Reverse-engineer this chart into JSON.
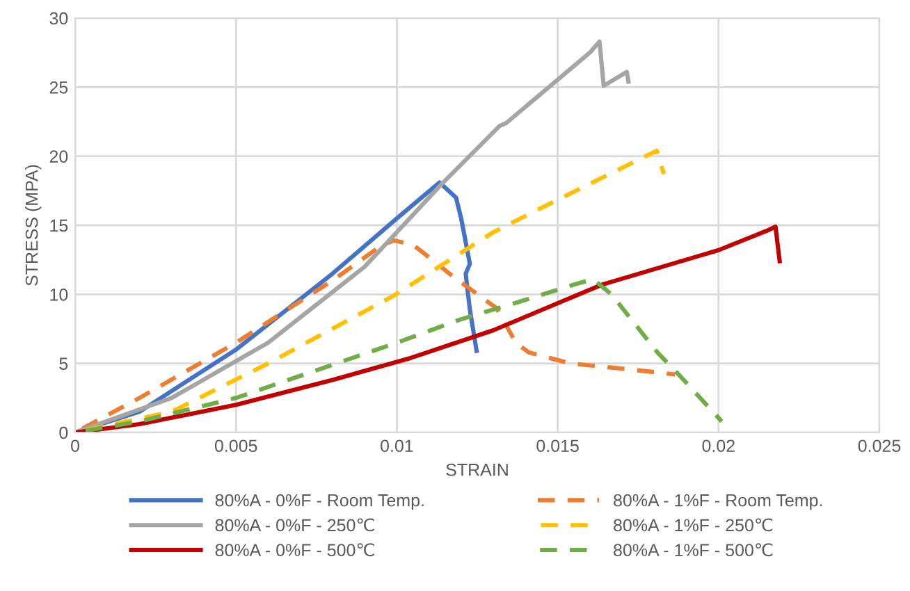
{
  "chart_data": {
    "type": "line",
    "xlabel": "STRAIN",
    "ylabel": "STRESS (MPA)",
    "xlim": [
      0,
      0.025
    ],
    "xticks": [
      0,
      0.005,
      0.01,
      0.015,
      0.02,
      0.025
    ],
    "ylim": [
      0,
      30
    ],
    "yticks": [
      0,
      5,
      10,
      15,
      20,
      25,
      30
    ],
    "grid": true,
    "legend": "bottom",
    "series": [
      {
        "name": "80%A - 0%F - Room Temp.",
        "color": "#4472c4",
        "line_style": "solid",
        "x": [
          0,
          0.002,
          0.005,
          0.008,
          0.01,
          0.01133,
          0.01184,
          0.012,
          0.01227,
          0.01214,
          0.01227,
          0.01248
        ],
        "values": [
          0,
          1.5,
          6,
          11.5,
          15.5,
          18.1,
          17.0,
          15.5,
          12.2,
          11.5,
          8.9,
          5.9
        ]
      },
      {
        "name": "80%A - 1%F - Room Temp.",
        "color": "#ed7d31",
        "line_style": "dashed",
        "x": [
          0,
          0.002,
          0.005,
          0.008,
          0.0095,
          0.0099,
          0.0105,
          0.0118,
          0.0131,
          0.0137,
          0.0141,
          0.0154,
          0.0175,
          0.01865
        ],
        "values": [
          0,
          2.5,
          6.5,
          11,
          13.5,
          13.9,
          13.6,
          11.2,
          9.0,
          6.5,
          5.8,
          5.0,
          4.5,
          4.2
        ]
      },
      {
        "name": "80%A - 0%F - 250℃",
        "color": "#a5a5a5",
        "line_style": "solid",
        "x": [
          0,
          0.003,
          0.006,
          0.009,
          0.0114,
          0.0132,
          0.0134,
          0.016,
          0.0163,
          0.01643,
          0.01715,
          0.0172
        ],
        "values": [
          0,
          2.5,
          6.5,
          12,
          18,
          22.2,
          22.4,
          27.5,
          28.3,
          25.1,
          26.1,
          25.4
        ]
      },
      {
        "name": "80%A - 1%F - 250℃",
        "color": "#ffc000",
        "line_style": "dashed",
        "x": [
          0,
          0.003,
          0.006,
          0.0099,
          0.013,
          0.0147,
          0.01808,
          0.0183
        ],
        "values": [
          0,
          1.5,
          5,
          9.9,
          14.5,
          16.5,
          20.4,
          18.7
        ]
      },
      {
        "name": "80%A - 0%F - 500℃",
        "color": "#c00000",
        "line_style": "solid",
        "x": [
          0,
          0.002,
          0.005,
          0.008,
          0.01044,
          0.013,
          0.01638,
          0.02,
          0.0215,
          0.02177,
          0.0219
        ],
        "values": [
          0,
          0.6,
          2,
          3.8,
          5.4,
          7.4,
          10.7,
          13.2,
          14.6,
          14.9,
          12.4
        ]
      },
      {
        "name": "80%A - 1%F - 500℃",
        "color": "#70ad47",
        "line_style": "dashed",
        "x": [
          0,
          0.002,
          0.005,
          0.01,
          0.012,
          0.014,
          0.0155,
          0.0161,
          0.01667,
          0.0181,
          0.0188,
          0.0201
        ],
        "values": [
          0,
          0.8,
          2.5,
          6.5,
          8.2,
          9.6,
          10.7,
          11.1,
          10.0,
          5.8,
          4.1,
          0.8
        ]
      }
    ]
  }
}
